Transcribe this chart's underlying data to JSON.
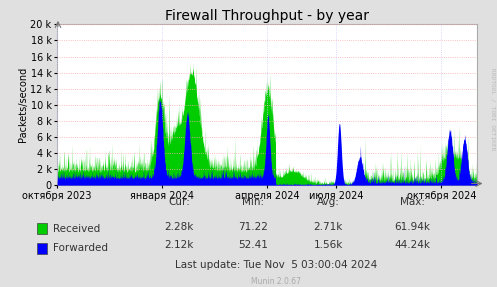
{
  "title": "Firewall Throughput - by year",
  "ylabel": "Packets/second",
  "background_color": "#e0e0e0",
  "plot_background_color": "#ffffff",
  "grid_color_h": "#ffaaaa",
  "grid_color_v": "#ccccff",
  "yticks": [
    0,
    2000,
    4000,
    6000,
    8000,
    10000,
    12000,
    14000,
    16000,
    18000,
    20000
  ],
  "ylim": [
    0,
    20000
  ],
  "xtick_labels": [
    "октября 2023",
    "января 2024",
    "апреля 2024",
    "июля 2024",
    "октября 2024"
  ],
  "xtick_positions": [
    0.0,
    0.25,
    0.5,
    0.665,
    0.915
  ],
  "received_color": "#00cc00",
  "forwarded_color": "#0000ff",
  "legend_received": "Received",
  "legend_forwarded": "Forwarded",
  "stats_header": [
    "Cur:",
    "Min:",
    "Avg:",
    "Max:"
  ],
  "cur_received": "2.28k",
  "cur_forwarded": "2.12k",
  "min_received": "71.22",
  "min_forwarded": "52.41",
  "avg_received": "2.71k",
  "avg_forwarded": "1.56k",
  "max_received": "61.94k",
  "max_forwarded": "44.24k",
  "last_update": "Last update: Tue Nov  5 03:00:04 2024",
  "munin_version": "Munin 2.0.67",
  "rrdtool_text": "RRDTOOL / TOBI OETIKER",
  "title_fontsize": 10,
  "axis_fontsize": 7,
  "legend_fontsize": 7.5,
  "stats_fontsize": 7.5
}
